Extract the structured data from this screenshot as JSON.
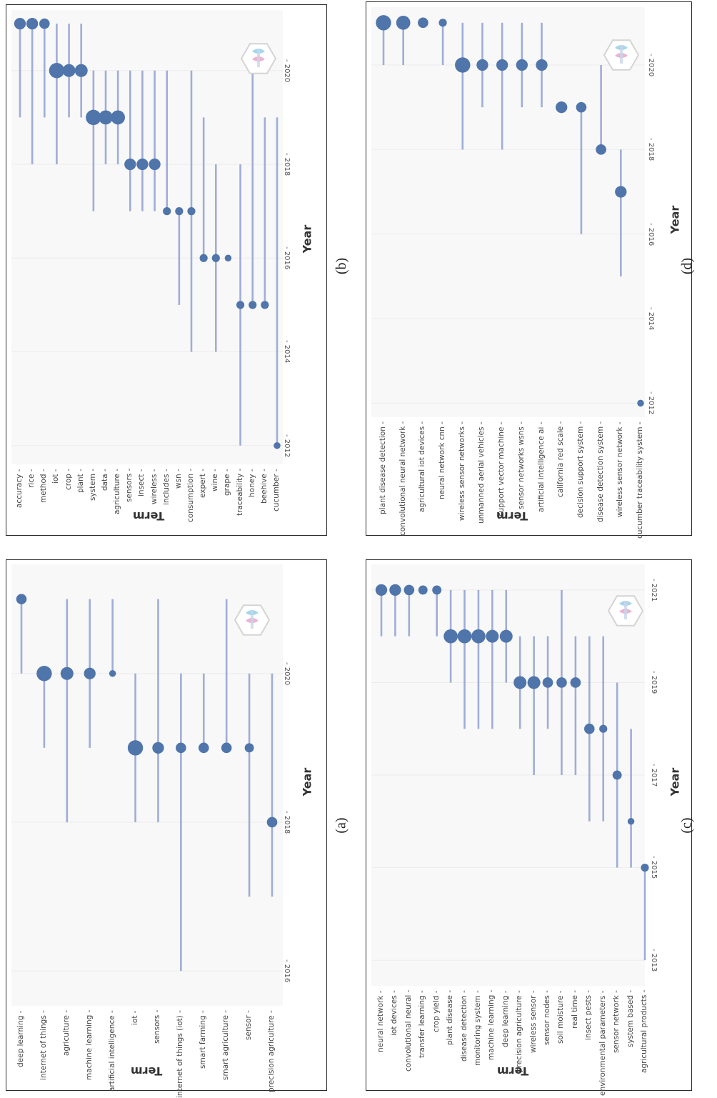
{
  "chart_data": [
    {
      "type": "scatter",
      "panel": "a",
      "caption": "(a)",
      "xlabel": "Year",
      "ylabel": "Term",
      "xlim": [
        2015.8,
        2021.4
      ],
      "xticks": [
        2016,
        2018,
        2020
      ],
      "terms": [
        "deep learning",
        "internet of things",
        "agriculture",
        "machine learning",
        "artificial intelligence",
        "iot",
        "sensors",
        "internet of things (iot)",
        "smart farming",
        "smart agriculture",
        "sensor",
        "precision agriculture"
      ],
      "series": [
        {
          "term": "deep learning",
          "start": 2020,
          "end": 2021,
          "peak": 2021,
          "size": 3
        },
        {
          "term": "internet of things",
          "start": 2019,
          "end": 2020,
          "peak": 2020,
          "size": 5
        },
        {
          "term": "agriculture",
          "start": 2018,
          "end": 2021,
          "peak": 2020,
          "size": 4
        },
        {
          "term": "machine learning",
          "start": 2019,
          "end": 2021,
          "peak": 2020,
          "size": 3.5
        },
        {
          "term": "artificial intelligence",
          "start": 2020,
          "end": 2021,
          "peak": 2020,
          "size": 1.5
        },
        {
          "term": "iot",
          "start": 2018,
          "end": 2020,
          "peak": 2019,
          "size": 5
        },
        {
          "term": "sensors",
          "start": 2018,
          "end": 2021,
          "peak": 2019,
          "size": 3.5
        },
        {
          "term": "internet of things (iot)",
          "start": 2016,
          "end": 2020,
          "peak": 2019,
          "size": 3
        },
        {
          "term": "smart farming",
          "start": 2019,
          "end": 2020,
          "peak": 2019,
          "size": 3
        },
        {
          "term": "smart agriculture",
          "start": 2019,
          "end": 2021,
          "peak": 2019,
          "size": 3
        },
        {
          "term": "sensor",
          "start": 2017,
          "end": 2020,
          "peak": 2019,
          "size": 2.5
        },
        {
          "term": "precision agriculture",
          "start": 2017,
          "end": 2020,
          "peak": 2018,
          "size": 3
        }
      ]
    },
    {
      "type": "scatter",
      "panel": "b",
      "caption": "(b)",
      "xlabel": "Year",
      "ylabel": "Term",
      "xlim": [
        2011.6,
        2021.2
      ],
      "xticks": [
        2012,
        2014,
        2016,
        2018,
        2020
      ],
      "terms": [
        "accuracy",
        "rice",
        "method",
        "iot",
        "crop",
        "plant",
        "system",
        "data",
        "agriculture",
        "sensors",
        "insect",
        "wireless",
        "includes",
        "wsn",
        "consumption",
        "expert",
        "wine",
        "grape",
        "traceability",
        "honey",
        "beehive",
        "cucumber"
      ],
      "series": [
        {
          "term": "accuracy",
          "start": 2019,
          "end": 2021,
          "peak": 2021,
          "size": 3.5
        },
        {
          "term": "rice",
          "start": 2018,
          "end": 2021,
          "peak": 2021,
          "size": 3.5
        },
        {
          "term": "method",
          "start": 2019,
          "end": 2021,
          "peak": 2021,
          "size": 3
        },
        {
          "term": "iot",
          "start": 2018,
          "end": 2021,
          "peak": 2020,
          "size": 5
        },
        {
          "term": "crop",
          "start": 2019,
          "end": 2021,
          "peak": 2020,
          "size": 4
        },
        {
          "term": "plant",
          "start": 2019,
          "end": 2021,
          "peak": 2020,
          "size": 4
        },
        {
          "term": "system",
          "start": 2017,
          "end": 2020,
          "peak": 2019,
          "size": 5
        },
        {
          "term": "data",
          "start": 2018,
          "end": 2020,
          "peak": 2019,
          "size": 4.5
        },
        {
          "term": "agriculture",
          "start": 2018,
          "end": 2020,
          "peak": 2019,
          "size": 4.5
        },
        {
          "term": "sensors",
          "start": 2017,
          "end": 2020,
          "peak": 2018,
          "size": 3.5
        },
        {
          "term": "insect",
          "start": 2017,
          "end": 2020,
          "peak": 2018,
          "size": 3.5
        },
        {
          "term": "wireless",
          "start": 2017,
          "end": 2020,
          "peak": 2018,
          "size": 3.5
        },
        {
          "term": "includes",
          "start": 2017,
          "end": 2020,
          "peak": 2017,
          "size": 2
        },
        {
          "term": "wsn",
          "start": 2015,
          "end": 2017,
          "peak": 2017,
          "size": 2
        },
        {
          "term": "consumption",
          "start": 2014,
          "end": 2020,
          "peak": 2017,
          "size": 2
        },
        {
          "term": "expert",
          "start": 2016,
          "end": 2019,
          "peak": 2016,
          "size": 2
        },
        {
          "term": "wine",
          "start": 2014,
          "end": 2018,
          "peak": 2016,
          "size": 2
        },
        {
          "term": "grape",
          "start": 2016,
          "end": 2016,
          "peak": 2016,
          "size": 1.5
        },
        {
          "term": "traceability",
          "start": 2012,
          "end": 2018,
          "peak": 2015,
          "size": 2
        },
        {
          "term": "honey",
          "start": 2015,
          "end": 2020,
          "peak": 2015,
          "size": 2
        },
        {
          "term": "beehive",
          "start": 2015,
          "end": 2019,
          "peak": 2015,
          "size": 2
        },
        {
          "term": "cucumber",
          "start": 2012,
          "end": 2019,
          "peak": 2012,
          "size": 1.5
        }
      ]
    },
    {
      "type": "scatter",
      "panel": "c",
      "caption": "(c)",
      "xlabel": "Year",
      "ylabel": "Term",
      "xlim": [
        2012.6,
        2021.4
      ],
      "xticks": [
        2013,
        2015,
        2017,
        2019,
        2021
      ],
      "terms": [
        "neural network",
        "iot devices",
        "convolutional neural",
        "transfer learning",
        "crop yield",
        "plant disease",
        "disease detection",
        "monitoring system",
        "machine learning",
        "deep learning",
        "precision agriculture",
        "wireless sensor",
        "sensor nodes",
        "soil moisture",
        "real time",
        "insect pests",
        "environmental parameters",
        "sensor network",
        "system based",
        "agricultural products"
      ],
      "series": [
        {
          "term": "neural network",
          "start": 2020,
          "end": 2021,
          "peak": 2021,
          "size": 3.5
        },
        {
          "term": "iot devices",
          "start": 2020,
          "end": 2021,
          "peak": 2021,
          "size": 3.5
        },
        {
          "term": "convolutional neural",
          "start": 2020,
          "end": 2021,
          "peak": 2021,
          "size": 3
        },
        {
          "term": "transfer learning",
          "start": 2021,
          "end": 2021,
          "peak": 2021,
          "size": 2.5
        },
        {
          "term": "crop yield",
          "start": 2020,
          "end": 2021,
          "peak": 2021,
          "size": 2.5
        },
        {
          "term": "plant disease",
          "start": 2019,
          "end": 2021,
          "peak": 2020,
          "size": 4.5
        },
        {
          "term": "disease detection",
          "start": 2018,
          "end": 2021,
          "peak": 2020,
          "size": 4.5
        },
        {
          "term": "monitoring system",
          "start": 2018,
          "end": 2021,
          "peak": 2020,
          "size": 4.5
        },
        {
          "term": "machine learning",
          "start": 2018,
          "end": 2021,
          "peak": 2020,
          "size": 4
        },
        {
          "term": "deep learning",
          "start": 2019,
          "end": 2021,
          "peak": 2020,
          "size": 4
        },
        {
          "term": "precision agriculture",
          "start": 2018,
          "end": 2020,
          "peak": 2019,
          "size": 4
        },
        {
          "term": "wireless sensor",
          "start": 2017,
          "end": 2020,
          "peak": 2019,
          "size": 4
        },
        {
          "term": "sensor nodes",
          "start": 2018,
          "end": 2020,
          "peak": 2019,
          "size": 3
        },
        {
          "term": "soil moisture",
          "start": 2017,
          "end": 2021,
          "peak": 2019,
          "size": 3
        },
        {
          "term": "real time",
          "start": 2017,
          "end": 2020,
          "peak": 2019,
          "size": 3
        },
        {
          "term": "insect pests",
          "start": 2016,
          "end": 2020,
          "peak": 2018,
          "size": 3
        },
        {
          "term": "environmental parameters",
          "start": 2016,
          "end": 2020,
          "peak": 2018,
          "size": 2
        },
        {
          "term": "sensor network",
          "start": 2015,
          "end": 2019,
          "peak": 2017,
          "size": 2.5
        },
        {
          "term": "system based",
          "start": 2015,
          "end": 2018,
          "peak": 2016,
          "size": 1.5
        },
        {
          "term": "agricultural products",
          "start": 2013,
          "end": 2015,
          "peak": 2015,
          "size": 2
        }
      ]
    },
    {
      "type": "scatter",
      "panel": "d",
      "caption": "(d)",
      "xlabel": "Year",
      "ylabel": "Term",
      "xlim": [
        2011.6,
        2021.2
      ],
      "xticks": [
        2012,
        2014,
        2016,
        2018,
        2020
      ],
      "terms": [
        "plant disease detection",
        "convolutional neural network",
        "agricultural iot devices",
        "neural network cnn",
        "wireless sensor networks",
        "unmanned aerial vehicles",
        "support vector machine",
        "sensor networks wsns",
        "artificial intelligence ai",
        "california red scale",
        "decision support system",
        "disease detection system",
        "wireless sensor network",
        "cucumber traceability system"
      ],
      "series": [
        {
          "term": "plant disease detection",
          "start": 2020,
          "end": 2021,
          "peak": 2021,
          "size": 5
        },
        {
          "term": "convolutional neural network",
          "start": 2020,
          "end": 2021,
          "peak": 2021,
          "size": 4.5
        },
        {
          "term": "agricultural iot devices",
          "start": 2021,
          "end": 2021,
          "peak": 2021,
          "size": 3
        },
        {
          "term": "neural network cnn",
          "start": 2020,
          "end": 2021,
          "peak": 2021,
          "size": 2
        },
        {
          "term": "wireless sensor networks",
          "start": 2018,
          "end": 2021,
          "peak": 2020,
          "size": 5
        },
        {
          "term": "unmanned aerial vehicles",
          "start": 2019,
          "end": 2021,
          "peak": 2020,
          "size": 3.5
        },
        {
          "term": "support vector machine",
          "start": 2018,
          "end": 2021,
          "peak": 2020,
          "size": 3.5
        },
        {
          "term": "sensor networks wsns",
          "start": 2019,
          "end": 2021,
          "peak": 2020,
          "size": 3.5
        },
        {
          "term": "artificial intelligence ai",
          "start": 2019,
          "end": 2021,
          "peak": 2020,
          "size": 3.5
        },
        {
          "term": "california red scale",
          "start": 2019,
          "end": 2019,
          "peak": 2019,
          "size": 3.5
        },
        {
          "term": "decision support system",
          "start": 2016,
          "end": 2019,
          "peak": 2019,
          "size": 3
        },
        {
          "term": "disease detection system",
          "start": 2018,
          "end": 2020,
          "peak": 2018,
          "size": 3
        },
        {
          "term": "wireless sensor network",
          "start": 2015,
          "end": 2018,
          "peak": 2017,
          "size": 3.5
        },
        {
          "term": "cucumber traceability system",
          "start": 2012,
          "end": 2012,
          "peak": 2012,
          "size": 1.5
        }
      ]
    }
  ],
  "colors": {
    "line": "#9fadd6",
    "point": "#4f75ab",
    "plot_background": "#f8f8f8",
    "grid": "#ffffff",
    "frame": "#2b2b2b"
  },
  "watermark": "logo-badge"
}
